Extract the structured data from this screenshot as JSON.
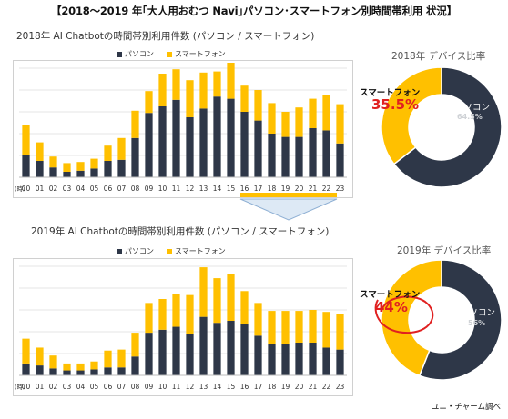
{
  "header": {
    "title": "【2018〜2019 年｢大人用おむつ Navi｣パソコン･スマートフォン別時間帯利用 状況】"
  },
  "colors": {
    "pc": "#2e3748",
    "sp": "#ffc000",
    "accent": "#e02020",
    "arrow_fill": "#dde9f5",
    "arrow_top": "#ffc000"
  },
  "chart_data": [
    {
      "type": "bar",
      "stacked": true,
      "title": "2018年  AI Chatbotの時間帯別利用件数 (パソコン / スマートフォン)",
      "legend_position": "top",
      "x_label_prefix": "(時)",
      "categories": [
        "00",
        "01",
        "02",
        "03",
        "04",
        "05",
        "06",
        "07",
        "08",
        "09",
        "10",
        "11",
        "12",
        "13",
        "14",
        "15",
        "16",
        "17",
        "18",
        "19",
        "20",
        "21",
        "22",
        "23"
      ],
      "series": [
        {
          "name": "パソコン",
          "values": [
            20,
            15,
            9,
            5,
            6,
            8,
            15,
            16,
            36,
            59,
            65,
            71,
            55,
            63,
            74,
            72,
            60,
            52,
            40,
            37,
            37,
            45,
            43,
            31
          ]
        },
        {
          "name": "スマートフォン",
          "values": [
            28,
            17,
            10,
            8,
            8,
            9,
            14,
            20,
            25,
            20,
            30,
            28,
            34,
            33,
            23,
            33,
            24,
            28,
            28,
            23,
            27,
            27,
            32,
            36
          ]
        }
      ],
      "grid": true
    },
    {
      "type": "pie",
      "donut": true,
      "title": "2018年  デバイス比率",
      "slices": [
        {
          "label": "パソコン",
          "value": 64.5,
          "display": "64.5%"
        },
        {
          "label": "スマートフォン",
          "value": 35.5,
          "display": "35.5%"
        }
      ]
    },
    {
      "type": "bar",
      "stacked": true,
      "title": "2019年  AI Chatbotの時間帯別利用件数 (パソコン / スマートフォン)",
      "legend_position": "top",
      "x_label_prefix": "(時)",
      "categories": [
        "00",
        "01",
        "02",
        "03",
        "04",
        "05",
        "06",
        "07",
        "08",
        "09",
        "10",
        "11",
        "12",
        "13",
        "14",
        "15",
        "16",
        "17",
        "18",
        "19",
        "20",
        "21",
        "22",
        "23"
      ],
      "series": [
        {
          "name": "パソコン",
          "values": [
            12,
            10,
            7,
            5,
            5,
            6,
            8,
            8,
            19,
            43,
            46,
            49,
            42,
            59,
            53,
            55,
            52,
            40,
            32,
            32,
            33,
            33,
            28,
            26
          ]
        },
        {
          "name": "スマートフォン",
          "values": [
            25,
            18,
            13,
            7,
            7,
            8,
            17,
            18,
            24,
            30,
            31,
            33,
            39,
            50,
            45,
            47,
            33,
            33,
            33,
            33,
            32,
            33,
            36,
            36
          ]
        }
      ],
      "grid": true
    },
    {
      "type": "pie",
      "donut": true,
      "title": "2019年  デバイス比率",
      "slices": [
        {
          "label": "パソコン",
          "value": 56,
          "display": "56%"
        },
        {
          "label": "スマートフォン",
          "value": 44,
          "display": "44%"
        }
      ]
    }
  ],
  "footer": {
    "credit": "ユニ・チャーム調べ"
  }
}
